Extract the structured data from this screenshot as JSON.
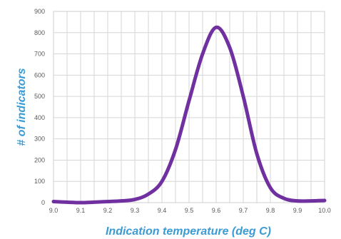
{
  "chart_data": {
    "type": "line",
    "xlabel": "Indication temperature (deg C)",
    "ylabel": "# of indicators",
    "xlim": [
      9.0,
      10.0
    ],
    "ylim": [
      0,
      900
    ],
    "x_ticks": [
      "9.0",
      "9.1",
      "9.2",
      "9.3",
      "9.4",
      "9.5",
      "9.6",
      "9.7",
      "9.8",
      "9.9",
      "10.0"
    ],
    "y_ticks": [
      "0",
      "100",
      "200",
      "300",
      "400",
      "500",
      "600",
      "700",
      "800",
      "900"
    ],
    "grid": true,
    "minor_x_grid": true,
    "legend": "none",
    "series": [
      {
        "color": "#7030a0",
        "x": [
          9.0,
          9.05,
          9.1,
          9.15,
          9.2,
          9.25,
          9.3,
          9.35,
          9.4,
          9.45,
          9.5,
          9.55,
          9.6,
          9.65,
          9.7,
          9.75,
          9.8,
          9.85,
          9.9,
          9.95,
          10.0
        ],
        "y": [
          5,
          2,
          0,
          2,
          5,
          8,
          15,
          40,
          100,
          250,
          480,
          700,
          825,
          730,
          500,
          230,
          70,
          20,
          8,
          8,
          10
        ]
      }
    ],
    "colors": {
      "line": "#7030a0",
      "axis_title": "#3a9bd5",
      "grid": "#d6d6d6",
      "tick_text": "#5a5a5a"
    }
  }
}
